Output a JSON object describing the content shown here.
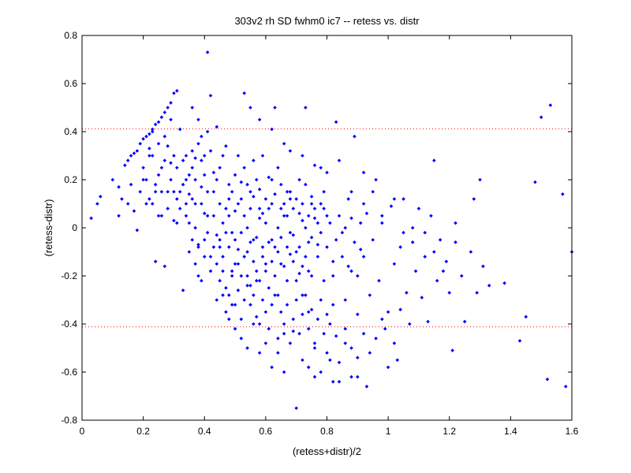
{
  "chart_data": {
    "type": "scatter",
    "title": "303v2 rh SD fwhm0 ic7 -- retess vs. distr",
    "xlabel": "(retess+distr)/2",
    "ylabel": "(retess-distr)",
    "xlim": [
      0,
      1.6
    ],
    "ylim": [
      -0.8,
      0.8
    ],
    "xticks": [
      0,
      0.2,
      0.4,
      0.6,
      0.8,
      1,
      1.2,
      1.4,
      1.6
    ],
    "xtick_labels": [
      "0",
      "0.2",
      "0.4",
      "0.6",
      "0.8",
      "1",
      "1.2",
      "1.4",
      "1.6"
    ],
    "yticks": [
      -0.8,
      -0.6,
      -0.4,
      -0.2,
      0,
      0.2,
      0.4,
      0.6,
      0.8
    ],
    "ytick_labels": [
      "-0.8",
      "-0.6",
      "-0.4",
      "-0.2",
      "0",
      "0.2",
      "0.4",
      "0.6",
      "0.8"
    ],
    "grid": false,
    "marker_color": "#0000ff",
    "reference_lines": [
      {
        "y": 0.412,
        "style": "dotted",
        "color": "#ff0000"
      },
      {
        "y": -0.412,
        "style": "dotted",
        "color": "#ff0000"
      }
    ],
    "points": [
      [
        0.03,
        0.04
      ],
      [
        0.05,
        0.1
      ],
      [
        0.06,
        0.13
      ],
      [
        0.1,
        0.2
      ],
      [
        0.12,
        0.17
      ],
      [
        0.13,
        0.12
      ],
      [
        0.14,
        0.26
      ],
      [
        0.15,
        0.28
      ],
      [
        0.16,
        0.3
      ],
      [
        0.17,
        0.31
      ],
      [
        0.18,
        0.32
      ],
      [
        0.19,
        0.35
      ],
      [
        0.2,
        0.37
      ],
      [
        0.21,
        0.38
      ],
      [
        0.22,
        0.39
      ],
      [
        0.23,
        0.41
      ],
      [
        0.24,
        0.43
      ],
      [
        0.25,
        0.44
      ],
      [
        0.26,
        0.46
      ],
      [
        0.27,
        0.48
      ],
      [
        0.28,
        0.5
      ],
      [
        0.29,
        0.52
      ],
      [
        0.3,
        0.56
      ],
      [
        0.31,
        0.57
      ],
      [
        0.12,
        0.05
      ],
      [
        0.15,
        0.1
      ],
      [
        0.16,
        0.18
      ],
      [
        0.17,
        0.07
      ],
      [
        0.18,
        -0.01
      ],
      [
        0.19,
        0.15
      ],
      [
        0.2,
        0.25
      ],
      [
        0.21,
        0.2
      ],
      [
        0.22,
        0.33
      ],
      [
        0.23,
        0.1
      ],
      [
        0.24,
        -0.14
      ],
      [
        0.25,
        0.22
      ],
      [
        0.26,
        0.05
      ],
      [
        0.27,
        -0.16
      ],
      [
        0.28,
        0.34
      ],
      [
        0.29,
        0.27
      ],
      [
        0.3,
        0.03
      ],
      [
        0.31,
        0.12
      ],
      [
        0.32,
        0.41
      ],
      [
        0.33,
        -0.26
      ],
      [
        0.34,
        0.2
      ],
      [
        0.35,
        0.14
      ],
      [
        0.36,
        0.5
      ],
      [
        0.37,
        0.29
      ],
      [
        0.38,
        -0.07
      ],
      [
        0.39,
        0.17
      ],
      [
        0.4,
        0.06
      ],
      [
        0.41,
        0.73
      ],
      [
        0.42,
        0.55
      ],
      [
        0.43,
        0.23
      ],
      [
        0.44,
        -0.03
      ],
      [
        0.45,
        0.1
      ],
      [
        0.46,
        -0.18
      ],
      [
        0.47,
        0.34
      ],
      [
        0.48,
        0.12
      ],
      [
        0.49,
        -0.32
      ],
      [
        0.5,
        0.07
      ],
      [
        0.51,
        -0.09
      ],
      [
        0.52,
        0.19
      ],
      [
        0.53,
        0.56
      ],
      [
        0.54,
        0.0
      ],
      [
        0.55,
        -0.24
      ],
      [
        0.56,
        0.13
      ],
      [
        0.57,
        -0.37
      ],
      [
        0.58,
        0.04
      ],
      [
        0.59,
        0.3
      ],
      [
        0.6,
        -0.15
      ],
      [
        0.61,
        0.21
      ],
      [
        0.62,
        -0.05
      ],
      [
        0.63,
        0.5
      ],
      [
        0.64,
        -0.28
      ],
      [
        0.65,
        0.08
      ],
      [
        0.66,
        -0.6
      ],
      [
        0.67,
        0.15
      ],
      [
        0.68,
        -0.11
      ],
      [
        0.69,
        -0.43
      ],
      [
        0.7,
        -0.75
      ],
      [
        0.71,
        -0.19
      ],
      [
        0.72,
        0.03
      ],
      [
        0.73,
        0.5
      ],
      [
        0.74,
        -0.35
      ],
      [
        0.75,
        0.1
      ],
      [
        0.76,
        -0.62
      ],
      [
        0.77,
        -0.07
      ],
      [
        0.78,
        0.25
      ],
      [
        0.79,
        -0.22
      ],
      [
        0.8,
        0.05
      ],
      [
        0.81,
        -0.4
      ],
      [
        0.82,
        -0.14
      ],
      [
        0.83,
        0.44
      ],
      [
        0.84,
        -0.64
      ],
      [
        0.85,
        -0.02
      ],
      [
        0.86,
        -0.3
      ],
      [
        0.87,
        0.12
      ],
      [
        0.88,
        -0.18
      ],
      [
        0.89,
        0.38
      ],
      [
        0.9,
        -0.62
      ],
      [
        0.91,
        -0.09
      ],
      [
        0.92,
        0.23
      ],
      [
        0.93,
        -0.66
      ],
      [
        0.94,
        -0.28
      ],
      [
        0.95,
        -0.05
      ],
      [
        0.96,
        0.2
      ],
      [
        0.97,
        -0.22
      ],
      [
        0.98,
        0.02
      ],
      [
        0.99,
        -0.42
      ],
      [
        1.0,
        -0.35
      ],
      [
        1.01,
        0.09
      ],
      [
        1.02,
        -0.15
      ],
      [
        1.03,
        -0.55
      ],
      [
        1.04,
        -0.08
      ],
      [
        1.05,
        0.12
      ],
      [
        1.06,
        -0.27
      ],
      [
        1.07,
        -0.4
      ],
      [
        1.08,
        0.0
      ],
      [
        1.09,
        -0.18
      ],
      [
        1.1,
        0.08
      ],
      [
        1.11,
        -0.29
      ],
      [
        1.12,
        -0.12
      ],
      [
        1.13,
        -0.39
      ],
      [
        1.14,
        0.05
      ],
      [
        1.15,
        0.28
      ],
      [
        1.16,
        -0.22
      ],
      [
        1.17,
        -0.05
      ],
      [
        1.19,
        -0.14
      ],
      [
        1.2,
        -0.27
      ],
      [
        1.21,
        -0.51
      ],
      [
        1.22,
        -0.06
      ],
      [
        1.24,
        -0.2
      ],
      [
        1.25,
        -0.39
      ],
      [
        1.27,
        -0.1
      ],
      [
        1.28,
        0.12
      ],
      [
        1.29,
        -0.27
      ],
      [
        1.3,
        0.2
      ],
      [
        1.31,
        -0.16
      ],
      [
        1.33,
        -0.24
      ],
      [
        1.38,
        -0.23
      ],
      [
        1.43,
        -0.47
      ],
      [
        1.45,
        -0.37
      ],
      [
        1.48,
        0.19
      ],
      [
        1.5,
        0.46
      ],
      [
        1.52,
        -0.63
      ],
      [
        1.53,
        0.51
      ],
      [
        1.57,
        0.14
      ],
      [
        1.58,
        -0.66
      ],
      [
        1.6,
        -0.1
      ],
      [
        0.34,
        0.05
      ],
      [
        0.35,
        -0.1
      ],
      [
        0.36,
        0.25
      ],
      [
        0.37,
        0.0
      ],
      [
        0.38,
        -0.2
      ],
      [
        0.39,
        0.1
      ],
      [
        0.4,
        -0.05
      ],
      [
        0.41,
        0.15
      ],
      [
        0.42,
        -0.12
      ],
      [
        0.43,
        0.05
      ],
      [
        0.44,
        0.2
      ],
      [
        0.45,
        -0.08
      ],
      [
        0.46,
        0.02
      ],
      [
        0.47,
        -0.25
      ],
      [
        0.48,
        0.18
      ],
      [
        0.49,
        -0.02
      ],
      [
        0.5,
        -0.15
      ],
      [
        0.51,
        0.1
      ],
      [
        0.52,
        -0.2
      ],
      [
        0.53,
        0.05
      ],
      [
        0.54,
        -0.1
      ],
      [
        0.55,
        0.15
      ],
      [
        0.56,
        -0.05
      ],
      [
        0.57,
        -0.18
      ],
      [
        0.58,
        0.08
      ],
      [
        0.59,
        -0.12
      ],
      [
        0.6,
        0.02
      ],
      [
        0.61,
        -0.25
      ],
      [
        0.62,
        0.1
      ],
      [
        0.63,
        -0.08
      ],
      [
        0.64,
        0.0
      ],
      [
        0.65,
        -0.15
      ],
      [
        0.66,
        0.05
      ],
      [
        0.67,
        -0.22
      ],
      [
        0.68,
        0.12
      ],
      [
        0.69,
        -0.03
      ],
      [
        0.7,
        -0.1
      ],
      [
        0.71,
        0.06
      ],
      [
        0.72,
        -0.16
      ],
      [
        0.73,
        0.0
      ],
      [
        0.74,
        -0.06
      ],
      [
        0.75,
        -0.2
      ],
      [
        0.76,
        0.04
      ],
      [
        0.77,
        -0.12
      ],
      [
        0.78,
        -0.02
      ],
      [
        0.79,
        0.08
      ],
      [
        0.8,
        -0.08
      ],
      [
        0.81,
        0.02
      ],
      [
        0.82,
        -0.2
      ],
      [
        0.83,
        -0.05
      ],
      [
        0.84,
        0.05
      ],
      [
        0.85,
        -0.12
      ],
      [
        0.86,
        0.0
      ],
      [
        0.87,
        -0.16
      ],
      [
        0.88,
        0.04
      ],
      [
        0.89,
        -0.06
      ],
      [
        0.9,
        -0.2
      ],
      [
        0.91,
        0.02
      ],
      [
        0.92,
        -0.12
      ],
      [
        0.93,
        0.06
      ],
      [
        0.3,
        0.15
      ],
      [
        0.31,
        0.25
      ],
      [
        0.32,
        0.08
      ],
      [
        0.33,
        0.18
      ],
      [
        0.34,
        0.3
      ],
      [
        0.35,
        0.02
      ],
      [
        0.36,
        0.12
      ],
      [
        0.37,
        0.2
      ],
      [
        0.38,
        0.35
      ],
      [
        0.39,
        0.28
      ],
      [
        0.4,
        0.22
      ],
      [
        0.41,
        0.05
      ],
      [
        0.42,
        0.32
      ],
      [
        0.43,
        0.15
      ],
      [
        0.44,
        0.42
      ],
      [
        0.45,
        0.25
      ],
      [
        0.46,
        0.3
      ],
      [
        0.47,
        0.08
      ],
      [
        0.48,
        0.05
      ],
      [
        0.49,
        0.15
      ],
      [
        0.5,
        0.22
      ],
      [
        0.51,
        0.3
      ],
      [
        0.52,
        0.12
      ],
      [
        0.53,
        0.25
      ],
      [
        0.54,
        0.18
      ],
      [
        0.55,
        0.08
      ],
      [
        0.56,
        0.28
      ],
      [
        0.57,
        0.2
      ],
      [
        0.58,
        0.16
      ],
      [
        0.59,
        0.06
      ],
      [
        0.6,
        0.12
      ],
      [
        0.61,
        0.08
      ],
      [
        0.62,
        0.2
      ],
      [
        0.63,
        0.14
      ],
      [
        0.64,
        0.25
      ],
      [
        0.65,
        0.18
      ],
      [
        0.66,
        0.1
      ],
      [
        0.67,
        0.05
      ],
      [
        0.68,
        0.15
      ],
      [
        0.69,
        0.08
      ],
      [
        0.7,
        0.12
      ],
      [
        0.71,
        0.2
      ],
      [
        0.72,
        0.1
      ],
      [
        0.73,
        0.18
      ],
      [
        0.74,
        0.05
      ],
      [
        0.75,
        0.13
      ],
      [
        0.76,
        0.08
      ],
      [
        0.77,
        0.02
      ],
      [
        0.78,
        0.1
      ],
      [
        0.79,
        0.15
      ],
      [
        0.44,
        -0.3
      ],
      [
        0.45,
        -0.22
      ],
      [
        0.46,
        -0.28
      ],
      [
        0.47,
        -0.35
      ],
      [
        0.48,
        -0.28
      ],
      [
        0.49,
        -0.2
      ],
      [
        0.5,
        -0.32
      ],
      [
        0.51,
        -0.26
      ],
      [
        0.52,
        -0.38
      ],
      [
        0.53,
        -0.3
      ],
      [
        0.54,
        -0.24
      ],
      [
        0.55,
        -0.32
      ],
      [
        0.56,
        -0.28
      ],
      [
        0.57,
        -0.22
      ],
      [
        0.58,
        -0.4
      ],
      [
        0.59,
        -0.3
      ],
      [
        0.6,
        -0.35
      ],
      [
        0.61,
        -0.42
      ],
      [
        0.62,
        -0.32
      ],
      [
        0.63,
        -0.28
      ],
      [
        0.64,
        -0.46
      ],
      [
        0.65,
        -0.35
      ],
      [
        0.66,
        -0.4
      ],
      [
        0.67,
        -0.32
      ],
      [
        0.68,
        -0.48
      ],
      [
        0.69,
        -0.38
      ],
      [
        0.7,
        -0.3
      ],
      [
        0.71,
        -0.44
      ],
      [
        0.72,
        -0.36
      ],
      [
        0.73,
        -0.28
      ],
      [
        0.74,
        -0.42
      ],
      [
        0.75,
        -0.34
      ],
      [
        0.76,
        -0.48
      ],
      [
        0.77,
        -0.38
      ],
      [
        0.78,
        -0.3
      ],
      [
        0.79,
        -0.44
      ],
      [
        0.8,
        -0.36
      ],
      [
        0.81,
        -0.55
      ],
      [
        0.82,
        -0.32
      ],
      [
        0.83,
        -0.45
      ],
      [
        0.36,
        -0.05
      ],
      [
        0.37,
        -0.15
      ],
      [
        0.38,
        -0.08
      ],
      [
        0.39,
        -0.22
      ],
      [
        0.4,
        -0.12
      ],
      [
        0.41,
        -0.02
      ],
      [
        0.42,
        -0.18
      ],
      [
        0.43,
        -0.08
      ],
      [
        0.44,
        -0.15
      ],
      [
        0.45,
        -0.05
      ],
      [
        0.46,
        -0.12
      ],
      [
        0.47,
        -0.02
      ],
      [
        0.48,
        -0.08
      ],
      [
        0.49,
        -0.18
      ],
      [
        0.5,
        -0.05
      ],
      [
        0.51,
        -0.15
      ],
      [
        0.52,
        -0.02
      ],
      [
        0.53,
        -0.12
      ],
      [
        0.54,
        -0.2
      ],
      [
        0.55,
        -0.06
      ],
      [
        0.56,
        -0.14
      ],
      [
        0.57,
        -0.04
      ],
      [
        0.58,
        -0.22
      ],
      [
        0.59,
        -0.08
      ],
      [
        0.6,
        -0.18
      ],
      [
        0.61,
        -0.06
      ],
      [
        0.62,
        -0.14
      ],
      [
        0.63,
        -0.2
      ],
      [
        0.64,
        -0.1
      ],
      [
        0.65,
        -0.04
      ],
      [
        0.66,
        -0.16
      ],
      [
        0.67,
        -0.08
      ],
      [
        0.68,
        -0.02
      ],
      [
        0.69,
        -0.14
      ],
      [
        0.7,
        -0.22
      ],
      [
        0.71,
        -0.08
      ],
      [
        0.72,
        -0.28
      ],
      [
        0.73,
        -0.12
      ],
      [
        0.74,
        -0.18
      ],
      [
        0.75,
        -0.04
      ],
      [
        0.22,
        0.12
      ],
      [
        0.23,
        0.3
      ],
      [
        0.24,
        0.18
      ],
      [
        0.25,
        0.05
      ],
      [
        0.26,
        0.15
      ],
      [
        0.27,
        0.28
      ],
      [
        0.28,
        0.08
      ],
      [
        0.29,
        0.2
      ],
      [
        0.3,
        0.3
      ],
      [
        0.31,
        0.02
      ],
      [
        0.32,
        0.15
      ],
      [
        0.33,
        0.28
      ],
      [
        0.34,
        0.1
      ],
      [
        0.35,
        0.22
      ],
      [
        0.36,
        0.32
      ],
      [
        0.37,
        0.1
      ],
      [
        0.38,
        0.45
      ],
      [
        0.39,
        0.38
      ],
      [
        0.4,
        0.3
      ],
      [
        0.41,
        0.4
      ],
      [
        0.2,
        0.2
      ],
      [
        0.21,
        0.1
      ],
      [
        0.22,
        0.3
      ],
      [
        0.23,
        0.4
      ],
      [
        0.24,
        0.15
      ],
      [
        0.25,
        0.35
      ],
      [
        0.26,
        0.25
      ],
      [
        0.27,
        0.38
      ],
      [
        0.28,
        0.15
      ],
      [
        0.29,
        0.45
      ],
      [
        0.55,
        0.5
      ],
      [
        0.58,
        0.45
      ],
      [
        0.62,
        0.41
      ],
      [
        0.66,
        0.35
      ],
      [
        0.68,
        0.32
      ],
      [
        0.72,
        0.3
      ],
      [
        0.76,
        0.26
      ],
      [
        0.8,
        0.23
      ],
      [
        0.84,
        0.28
      ],
      [
        0.88,
        0.15
      ],
      [
        0.92,
        0.1
      ],
      [
        0.95,
        0.15
      ],
      [
        0.98,
        0.05
      ],
      [
        1.02,
        0.12
      ],
      [
        1.05,
        -0.02
      ],
      [
        1.08,
        -0.06
      ],
      [
        1.12,
        -0.02
      ],
      [
        1.15,
        -0.1
      ],
      [
        1.18,
        -0.18
      ],
      [
        1.22,
        0.02
      ],
      [
        0.86,
        -0.42
      ],
      [
        0.88,
        -0.5
      ],
      [
        0.9,
        -0.36
      ],
      [
        0.92,
        -0.44
      ],
      [
        0.94,
        -0.52
      ],
      [
        0.96,
        -0.46
      ],
      [
        0.98,
        -0.38
      ],
      [
        1.0,
        -0.58
      ],
      [
        1.02,
        -0.48
      ],
      [
        1.04,
        -0.34
      ],
      [
        0.48,
        -0.38
      ],
      [
        0.5,
        -0.42
      ],
      [
        0.52,
        -0.46
      ],
      [
        0.54,
        -0.5
      ],
      [
        0.56,
        -0.4
      ],
      [
        0.58,
        -0.52
      ],
      [
        0.6,
        -0.48
      ],
      [
        0.62,
        -0.58
      ],
      [
        0.64,
        -0.52
      ],
      [
        0.66,
        -0.44
      ],
      [
        0.72,
        -0.55
      ],
      [
        0.74,
        -0.58
      ],
      [
        0.76,
        -0.5
      ],
      [
        0.78,
        -0.6
      ],
      [
        0.8,
        -0.52
      ],
      [
        0.82,
        -0.64
      ],
      [
        0.84,
        -0.56
      ],
      [
        0.86,
        -0.48
      ],
      [
        0.88,
        -0.62
      ],
      [
        0.9,
        -0.54
      ]
    ]
  }
}
